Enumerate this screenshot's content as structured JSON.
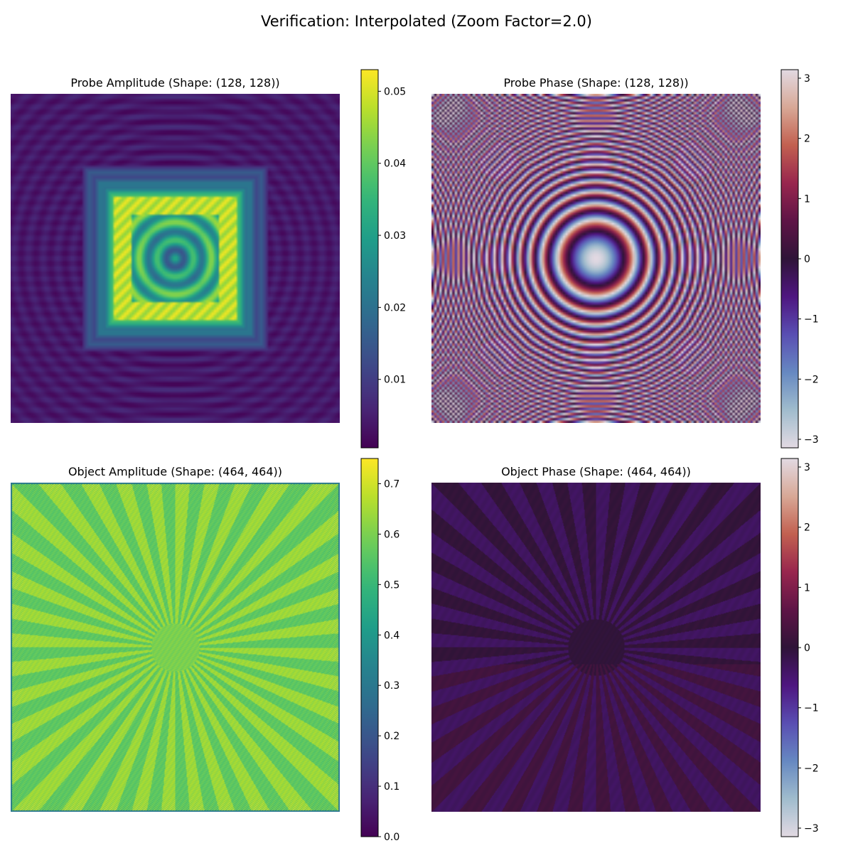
{
  "figure": {
    "title": "Verification: Interpolated (Zoom Factor=2.0)"
  },
  "chart_data": [
    {
      "type": "heatmap",
      "title": "Probe Amplitude (Shape: (128, 128))",
      "shape": [
        128,
        128
      ],
      "colormap": "viridis",
      "colorbar": {
        "vmin": 0.0005,
        "vmax": 0.053,
        "ticks": [
          0.01,
          0.02,
          0.03,
          0.04,
          0.05
        ],
        "tick_labels": [
          "0.01",
          "0.02",
          "0.03",
          "0.04",
          "0.05"
        ]
      },
      "description_values": {
        "background_level": 0.004,
        "square_edge_level": 0.048,
        "center_level": 0.022
      },
      "axes_visible": false
    },
    {
      "type": "heatmap",
      "title": "Probe Phase (Shape: (128, 128))",
      "shape": [
        128,
        128
      ],
      "colormap": "twilight",
      "colorbar": {
        "vmin": -3.14159,
        "vmax": 3.14159,
        "ticks": [
          -3,
          -2,
          -1,
          0,
          1,
          2,
          3
        ],
        "tick_labels": [
          "−3",
          "−2",
          "−1",
          "0",
          "1",
          "2",
          "3"
        ]
      },
      "axes_visible": false
    },
    {
      "type": "heatmap",
      "title": "Object Amplitude (Shape: (464, 464))",
      "shape": [
        464,
        464
      ],
      "colormap": "viridis",
      "colorbar": {
        "vmin": 0.0,
        "vmax": 0.75,
        "ticks": [
          0.0,
          0.1,
          0.2,
          0.3,
          0.4,
          0.5,
          0.6,
          0.7
        ],
        "tick_labels": [
          "0.0",
          "0.1",
          "0.2",
          "0.3",
          "0.4",
          "0.5",
          "0.6",
          "0.7"
        ]
      },
      "axes_visible": false
    },
    {
      "type": "heatmap",
      "title": "Object Phase (Shape: (464, 464))",
      "shape": [
        464,
        464
      ],
      "colormap": "twilight",
      "colorbar": {
        "vmin": -3.14159,
        "vmax": 3.14159,
        "ticks": [
          -3,
          -2,
          -1,
          0,
          1,
          2,
          3
        ],
        "tick_labels": [
          "−3",
          "−2",
          "−1",
          "0",
          "1",
          "2",
          "3"
        ]
      },
      "axes_visible": false
    }
  ]
}
